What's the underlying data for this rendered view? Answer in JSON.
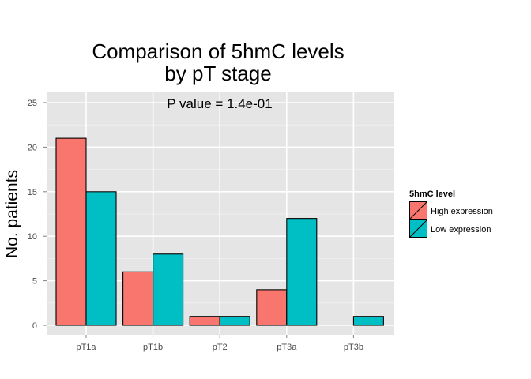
{
  "chart_data": {
    "type": "bar",
    "title_lines": [
      "Comparison of 5hmC levels",
      "by pT stage"
    ],
    "annotation": "P value = 1.4e-01",
    "xlabel": "",
    "ylabel": "No. patients",
    "categories": [
      "pT1a",
      "pT1b",
      "pT2",
      "pT3a",
      "pT3b"
    ],
    "series": [
      {
        "name": "High expression",
        "color": "#F8766D",
        "values": [
          21,
          6,
          1,
          4,
          null
        ]
      },
      {
        "name": "Low expression",
        "color": "#00BFC4",
        "values": [
          15,
          8,
          1,
          12,
          1
        ]
      }
    ],
    "ylim": [
      0,
      25
    ],
    "yticks": [
      0,
      5,
      10,
      15,
      20,
      25
    ],
    "legend": {
      "title": "5hmC level",
      "position": "right"
    },
    "grid": true,
    "panel_color": "#E5E5E5",
    "grid_color": "#FFFFFF"
  }
}
